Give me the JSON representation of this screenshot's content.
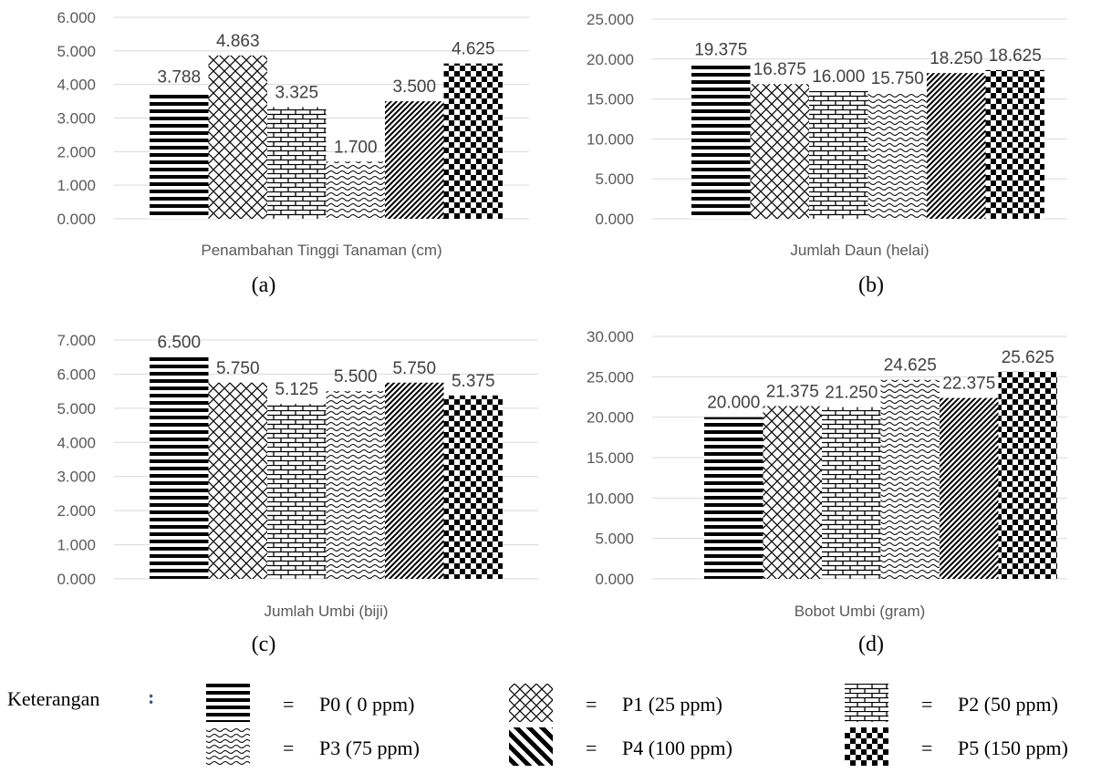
{
  "chart_data": [
    {
      "type": "bar",
      "panel_label": "(a)",
      "xlabel": "Penambahan Tinggi Tanaman (cm)",
      "categories": [
        "Penambahan Tinggi Tanaman (cm)"
      ],
      "ylim": [
        0,
        6
      ],
      "yticks": [
        "0.000",
        "1.000",
        "2.000",
        "3.000",
        "4.000",
        "5.000",
        "6.000"
      ],
      "grid": true,
      "series": [
        {
          "name": "P0 ( 0 ppm)",
          "values": [
            3.788
          ],
          "label": "3.788"
        },
        {
          "name": "P1 (25 ppm)",
          "values": [
            4.863
          ],
          "label": "4.863"
        },
        {
          "name": "P2 (50 ppm)",
          "values": [
            3.325
          ],
          "label": "3.325"
        },
        {
          "name": "P3 (75 ppm)",
          "values": [
            1.7
          ],
          "label": "1.700"
        },
        {
          "name": "P4 (100 ppm)",
          "values": [
            3.5
          ],
          "label": "3.500"
        },
        {
          "name": "P5 (150 ppm)",
          "values": [
            4.625
          ],
          "label": "4.625"
        }
      ]
    },
    {
      "type": "bar",
      "panel_label": "(b)",
      "xlabel": "Jumlah Daun (helai)",
      "categories": [
        "Jumlah Daun (helai)"
      ],
      "ylim": [
        0,
        25
      ],
      "yticks": [
        "0.000",
        "5.000",
        "10.000",
        "15.000",
        "20.000",
        "25.000"
      ],
      "grid": true,
      "series": [
        {
          "name": "P0 ( 0 ppm)",
          "values": [
            19.375
          ],
          "label": "19.375"
        },
        {
          "name": "P1 (25 ppm)",
          "values": [
            16.875
          ],
          "label": "16.875"
        },
        {
          "name": "P2 (50 ppm)",
          "values": [
            16.0
          ],
          "label": "16.000"
        },
        {
          "name": "P3 (75 ppm)",
          "values": [
            15.75
          ],
          "label": "15.750"
        },
        {
          "name": "P4 (100 ppm)",
          "values": [
            18.25
          ],
          "label": "18.250"
        },
        {
          "name": "P5 (150 ppm)",
          "values": [
            18.625
          ],
          "label": "18.625"
        }
      ]
    },
    {
      "type": "bar",
      "panel_label": "(c)",
      "xlabel": "Jumlah Umbi (biji)",
      "categories": [
        "Jumlah Umbi (biji)"
      ],
      "ylim": [
        0,
        7
      ],
      "yticks": [
        "0.000",
        "1.000",
        "2.000",
        "3.000",
        "4.000",
        "5.000",
        "6.000",
        "7.000"
      ],
      "grid": true,
      "series": [
        {
          "name": "P0 ( 0 ppm)",
          "values": [
            6.5
          ],
          "label": "6.500"
        },
        {
          "name": "P1 (25 ppm)",
          "values": [
            5.75
          ],
          "label": "5.750"
        },
        {
          "name": "P2 (50 ppm)",
          "values": [
            5.125
          ],
          "label": "5.125"
        },
        {
          "name": "P3 (75 ppm)",
          "values": [
            5.5
          ],
          "label": "5.500"
        },
        {
          "name": "P4 (100 ppm)",
          "values": [
            5.75
          ],
          "label": "5.750"
        },
        {
          "name": "P5 (150 ppm)",
          "values": [
            5.375
          ],
          "label": "5.375"
        }
      ]
    },
    {
      "type": "bar",
      "panel_label": "(d)",
      "xlabel": "Bobot Umbi (gram)",
      "categories": [
        "Bobot Umbi (gram)"
      ],
      "ylim": [
        0,
        30
      ],
      "yticks": [
        "0.000",
        "5.000",
        "10.000",
        "15.000",
        "20.000",
        "25.000",
        "30.000"
      ],
      "grid": true,
      "series": [
        {
          "name": "P0 ( 0 ppm)",
          "values": [
            20.0
          ],
          "label": "20.000"
        },
        {
          "name": "P1 (25 ppm)",
          "values": [
            21.375
          ],
          "label": "21.375"
        },
        {
          "name": "P2 (50 ppm)",
          "values": [
            21.25
          ],
          "label": "21.250"
        },
        {
          "name": "P3 (75 ppm)",
          "values": [
            24.625
          ],
          "label": "24.625"
        },
        {
          "name": "P4 (100 ppm)",
          "values": [
            22.375
          ],
          "label": "22.375"
        },
        {
          "name": "P5 (150 ppm)",
          "values": [
            25.625
          ],
          "label": "25.625"
        }
      ]
    }
  ],
  "legend": {
    "title": "Keterangan",
    "colon": ":",
    "equals": "=",
    "entries": [
      {
        "label": "P0 ( 0 ppm)",
        "pattern": "horizontal-stripes"
      },
      {
        "label": "P1 (25 ppm)",
        "pattern": "diagonal-crosshatch"
      },
      {
        "label": "P2 (50 ppm)",
        "pattern": "brick"
      },
      {
        "label": "P3 (75 ppm)",
        "pattern": "wave"
      },
      {
        "label": "P4 (100 ppm)",
        "pattern": "wide-diagonal-stripes"
      },
      {
        "label": "P5 (150 ppm)",
        "pattern": "checkerboard"
      }
    ]
  }
}
